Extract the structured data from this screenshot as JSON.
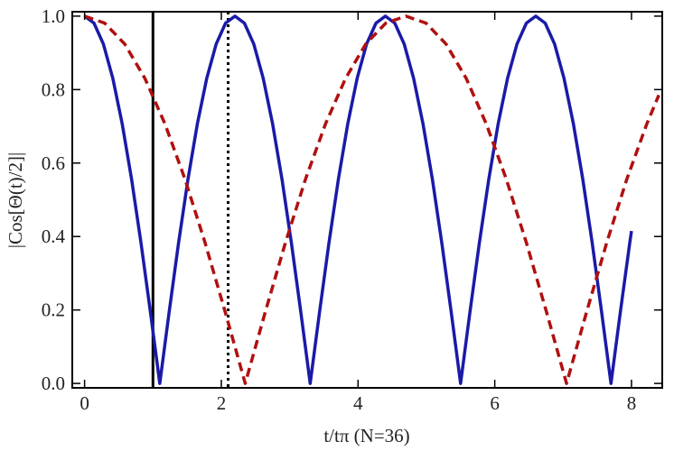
{
  "chart_data": {
    "type": "line",
    "xlabel": "t/tπ (N=36)",
    "ylabel": "|Cos[Θ(t)/2]|",
    "xlim": [
      -0.18,
      8.45
    ],
    "ylim": [
      -0.012,
      1.012
    ],
    "xticks": [
      0,
      2,
      4,
      6,
      8
    ],
    "yticks": [
      {
        "value": 0,
        "label": "0.0"
      },
      0.2,
      0.4,
      0.6,
      0.8,
      {
        "value": 1,
        "label": "1.0"
      }
    ],
    "vlines": [
      {
        "x": 1,
        "style": "solid",
        "color": "#000000"
      },
      {
        "x": 2.1,
        "style": "dotted",
        "color": "#000000"
      }
    ],
    "series": [
      {
        "color": "#1a1aa8",
        "style": "solid",
        "x": [
          0,
          0.1375,
          0.275,
          0.4125,
          0.55,
          0.6875,
          0.825,
          0.9625,
          1.1,
          1.2375,
          1.375,
          1.5125,
          1.65,
          1.7875,
          1.925,
          2.0625,
          2.2,
          2.3375,
          2.475,
          2.6125,
          2.75,
          2.8875,
          3.025,
          3.1625,
          3.3,
          3.4375,
          3.575,
          3.7125,
          3.85,
          3.9875,
          4.125,
          4.2625,
          4.4,
          4.5375,
          4.675,
          4.8125,
          4.95,
          5.0875,
          5.225,
          5.3625,
          5.5,
          5.6375,
          5.775,
          5.9125,
          6.05,
          6.1875,
          6.325,
          6.4625,
          6.6,
          6.7375,
          6.875,
          7.0125,
          7.15,
          7.2875,
          7.425,
          7.5625,
          7.7,
          7.8375,
          7.975,
          8
        ],
        "values": [
          1,
          0.981,
          0.924,
          0.831,
          0.707,
          0.556,
          0.383,
          0.195,
          0,
          0.195,
          0.383,
          0.556,
          0.707,
          0.831,
          0.924,
          0.981,
          1,
          0.981,
          0.924,
          0.831,
          0.707,
          0.556,
          0.383,
          0.195,
          0,
          0.195,
          0.383,
          0.556,
          0.707,
          0.831,
          0.924,
          0.981,
          1,
          0.981,
          0.924,
          0.831,
          0.707,
          0.556,
          0.383,
          0.195,
          0,
          0.195,
          0.383,
          0.556,
          0.707,
          0.831,
          0.924,
          0.981,
          1,
          0.981,
          0.924,
          0.831,
          0.707,
          0.556,
          0.383,
          0.195,
          0,
          0.195,
          0.383,
          0.415
        ]
      },
      {
        "color": "#b01010",
        "style": "dashed",
        "x": [
          0,
          0.29375,
          0.5875,
          0.88125,
          1.175,
          1.46875,
          1.7625,
          2.05625,
          2.35,
          2.64375,
          2.9375,
          3.23125,
          3.525,
          3.81875,
          4.1125,
          4.40625,
          4.7,
          4.99375,
          5.2875,
          5.58125,
          5.875,
          6.16875,
          6.4625,
          6.75625,
          7.05,
          7.34375,
          7.6375,
          7.93125,
          8.225,
          8.4
        ],
        "values": [
          1,
          0.981,
          0.924,
          0.831,
          0.707,
          0.556,
          0.383,
          0.195,
          0,
          0.195,
          0.383,
          0.556,
          0.707,
          0.831,
          0.924,
          0.981,
          1,
          0.981,
          0.924,
          0.831,
          0.707,
          0.556,
          0.383,
          0.195,
          0,
          0.195,
          0.383,
          0.556,
          0.707,
          0.785
        ]
      }
    ]
  }
}
